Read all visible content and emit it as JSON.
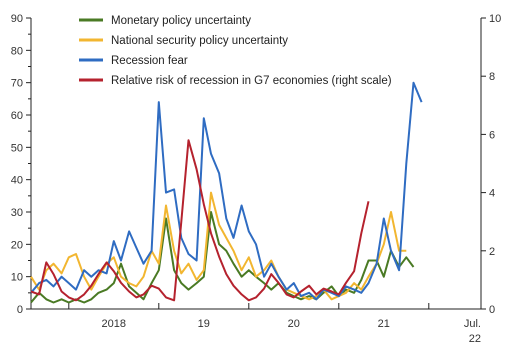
{
  "chart_data": {
    "type": "line",
    "legend": {
      "placement": "top-center",
      "entries": [
        "Monetary policy uncertainty",
        "National security policy uncertainty",
        "Recession fear",
        "Relative risk of recession in G7 economies (right scale)"
      ]
    },
    "x_labels": [
      "2018",
      "19",
      "20",
      "21",
      "Jul.",
      "22"
    ],
    "y_left": {
      "ticks": [
        "0",
        "10",
        "20",
        "30",
        "40",
        "50",
        "60",
        "70",
        "80",
        "90"
      ],
      "range": [
        0,
        90
      ]
    },
    "y_right": {
      "ticks": [
        "0",
        "2",
        "4",
        "6",
        "8",
        "10"
      ],
      "range": [
        0,
        10
      ]
    },
    "x_range": [
      2017.58,
      2022.58
    ],
    "grid": false,
    "colors": {
      "monetary": "#4a7a24",
      "national": "#f2b630",
      "recession_fear": "#2f6cc2",
      "relative_risk": "#b5222e"
    },
    "series": [
      {
        "name": "Monetary policy uncertainty",
        "axis": "left",
        "points": [
          [
            2017.58,
            2
          ],
          [
            2017.67,
            5
          ],
          [
            2017.75,
            3
          ],
          [
            2017.83,
            2
          ],
          [
            2017.92,
            3
          ],
          [
            2018.0,
            2
          ],
          [
            2018.08,
            3
          ],
          [
            2018.17,
            2
          ],
          [
            2018.25,
            3
          ],
          [
            2018.33,
            5
          ],
          [
            2018.42,
            6
          ],
          [
            2018.5,
            8
          ],
          [
            2018.58,
            14
          ],
          [
            2018.67,
            7
          ],
          [
            2018.75,
            5
          ],
          [
            2018.83,
            3
          ],
          [
            2018.92,
            8
          ],
          [
            2019.0,
            12
          ],
          [
            2019.08,
            28
          ],
          [
            2019.17,
            12
          ],
          [
            2019.25,
            8
          ],
          [
            2019.33,
            6
          ],
          [
            2019.42,
            8
          ],
          [
            2019.5,
            10
          ],
          [
            2019.58,
            30
          ],
          [
            2019.67,
            20
          ],
          [
            2019.75,
            18
          ],
          [
            2019.83,
            14
          ],
          [
            2019.92,
            10
          ],
          [
            2020.0,
            12
          ],
          [
            2020.08,
            10
          ],
          [
            2020.17,
            8
          ],
          [
            2020.25,
            6
          ],
          [
            2020.33,
            8
          ],
          [
            2020.42,
            5
          ],
          [
            2020.5,
            4
          ],
          [
            2020.58,
            3
          ],
          [
            2020.67,
            4
          ],
          [
            2020.75,
            3
          ],
          [
            2020.83,
            5
          ],
          [
            2020.92,
            7
          ],
          [
            2021.0,
            4
          ],
          [
            2021.08,
            6
          ],
          [
            2021.17,
            5
          ],
          [
            2021.25,
            9
          ],
          [
            2021.33,
            15
          ],
          [
            2021.42,
            15
          ],
          [
            2021.5,
            10
          ],
          [
            2021.58,
            18
          ],
          [
            2021.67,
            13
          ],
          [
            2021.75,
            16
          ],
          [
            2021.83,
            13
          ]
        ]
      },
      {
        "name": "National security policy uncertainty",
        "axis": "left",
        "points": [
          [
            2017.58,
            10
          ],
          [
            2017.67,
            6
          ],
          [
            2017.75,
            12
          ],
          [
            2017.83,
            14
          ],
          [
            2017.92,
            11
          ],
          [
            2018.0,
            16
          ],
          [
            2018.08,
            17
          ],
          [
            2018.17,
            10
          ],
          [
            2018.25,
            6
          ],
          [
            2018.33,
            10
          ],
          [
            2018.42,
            14
          ],
          [
            2018.5,
            16
          ],
          [
            2018.58,
            10
          ],
          [
            2018.67,
            8
          ],
          [
            2018.75,
            7
          ],
          [
            2018.83,
            10
          ],
          [
            2018.92,
            18
          ],
          [
            2019.0,
            14
          ],
          [
            2019.08,
            32
          ],
          [
            2019.17,
            18
          ],
          [
            2019.25,
            11
          ],
          [
            2019.33,
            14
          ],
          [
            2019.42,
            9
          ],
          [
            2019.5,
            12
          ],
          [
            2019.58,
            36
          ],
          [
            2019.67,
            26
          ],
          [
            2019.75,
            22
          ],
          [
            2019.83,
            18
          ],
          [
            2019.92,
            12
          ],
          [
            2020.0,
            16
          ],
          [
            2020.08,
            10
          ],
          [
            2020.17,
            12
          ],
          [
            2020.25,
            15
          ],
          [
            2020.33,
            10
          ],
          [
            2020.42,
            6
          ],
          [
            2020.5,
            5
          ],
          [
            2020.58,
            4
          ],
          [
            2020.67,
            3
          ],
          [
            2020.75,
            4
          ],
          [
            2020.83,
            6
          ],
          [
            2020.92,
            3
          ],
          [
            2021.0,
            4
          ],
          [
            2021.08,
            5
          ],
          [
            2021.17,
            8
          ],
          [
            2021.25,
            6
          ],
          [
            2021.33,
            10
          ],
          [
            2021.42,
            14
          ],
          [
            2021.5,
            20
          ],
          [
            2021.58,
            30
          ],
          [
            2021.67,
            18
          ],
          [
            2021.75,
            18
          ]
        ]
      },
      {
        "name": "Recession fear",
        "axis": "left",
        "points": [
          [
            2017.58,
            5
          ],
          [
            2017.67,
            8
          ],
          [
            2017.75,
            9
          ],
          [
            2017.83,
            7
          ],
          [
            2017.92,
            10
          ],
          [
            2018.0,
            8
          ],
          [
            2018.08,
            6
          ],
          [
            2018.17,
            12
          ],
          [
            2018.25,
            10
          ],
          [
            2018.33,
            12
          ],
          [
            2018.42,
            11
          ],
          [
            2018.5,
            21
          ],
          [
            2018.58,
            15
          ],
          [
            2018.67,
            24
          ],
          [
            2018.75,
            19
          ],
          [
            2018.83,
            14
          ],
          [
            2018.92,
            18
          ],
          [
            2019.0,
            64
          ],
          [
            2019.08,
            36
          ],
          [
            2019.17,
            37
          ],
          [
            2019.25,
            22
          ],
          [
            2019.33,
            17
          ],
          [
            2019.42,
            15
          ],
          [
            2019.5,
            59
          ],
          [
            2019.58,
            48
          ],
          [
            2019.67,
            42
          ],
          [
            2019.75,
            28
          ],
          [
            2019.83,
            22
          ],
          [
            2019.92,
            32
          ],
          [
            2020.0,
            24
          ],
          [
            2020.08,
            20
          ],
          [
            2020.17,
            10
          ],
          [
            2020.25,
            14
          ],
          [
            2020.33,
            10
          ],
          [
            2020.42,
            6
          ],
          [
            2020.5,
            8
          ],
          [
            2020.58,
            4
          ],
          [
            2020.67,
            5
          ],
          [
            2020.75,
            3
          ],
          [
            2020.83,
            6
          ],
          [
            2020.92,
            5
          ],
          [
            2021.0,
            4
          ],
          [
            2021.08,
            7
          ],
          [
            2021.17,
            6
          ],
          [
            2021.25,
            5
          ],
          [
            2021.33,
            8
          ],
          [
            2021.42,
            14
          ],
          [
            2021.5,
            28
          ],
          [
            2021.58,
            18
          ],
          [
            2021.67,
            12
          ],
          [
            2021.75,
            45
          ],
          [
            2021.83,
            70
          ],
          [
            2021.92,
            64
          ]
        ]
      },
      {
        "name": "Relative risk of recession in G7 economies (right scale)",
        "axis": "right",
        "points": [
          [
            2017.58,
            0.6
          ],
          [
            2017.67,
            0.5
          ],
          [
            2017.75,
            1.6
          ],
          [
            2017.83,
            1.2
          ],
          [
            2017.92,
            0.6
          ],
          [
            2018.0,
            0.4
          ],
          [
            2018.08,
            0.3
          ],
          [
            2018.17,
            0.5
          ],
          [
            2018.25,
            0.8
          ],
          [
            2018.33,
            1.2
          ],
          [
            2018.42,
            1.6
          ],
          [
            2018.5,
            1.3
          ],
          [
            2018.58,
            0.9
          ],
          [
            2018.67,
            0.6
          ],
          [
            2018.75,
            0.4
          ],
          [
            2018.83,
            0.5
          ],
          [
            2018.92,
            0.8
          ],
          [
            2019.0,
            0.7
          ],
          [
            2019.08,
            0.4
          ],
          [
            2019.17,
            0.3
          ],
          [
            2019.25,
            3.0
          ],
          [
            2019.33,
            5.8
          ],
          [
            2019.42,
            4.8
          ],
          [
            2019.5,
            3.6
          ],
          [
            2019.58,
            2.6
          ],
          [
            2019.67,
            1.8
          ],
          [
            2019.75,
            1.2
          ],
          [
            2019.83,
            0.8
          ],
          [
            2019.92,
            0.5
          ],
          [
            2020.0,
            0.3
          ],
          [
            2020.08,
            0.4
          ],
          [
            2020.17,
            0.7
          ],
          [
            2020.25,
            1.2
          ],
          [
            2020.33,
            0.9
          ],
          [
            2020.42,
            0.5
          ],
          [
            2020.5,
            0.4
          ],
          [
            2020.58,
            0.6
          ],
          [
            2020.67,
            0.8
          ],
          [
            2020.75,
            0.5
          ],
          [
            2020.83,
            0.7
          ],
          [
            2020.92,
            0.6
          ],
          [
            2021.0,
            0.5
          ],
          [
            2021.08,
            0.9
          ],
          [
            2021.17,
            1.3
          ],
          [
            2021.25,
            2.6
          ],
          [
            2021.33,
            3.7
          ]
        ]
      }
    ]
  }
}
